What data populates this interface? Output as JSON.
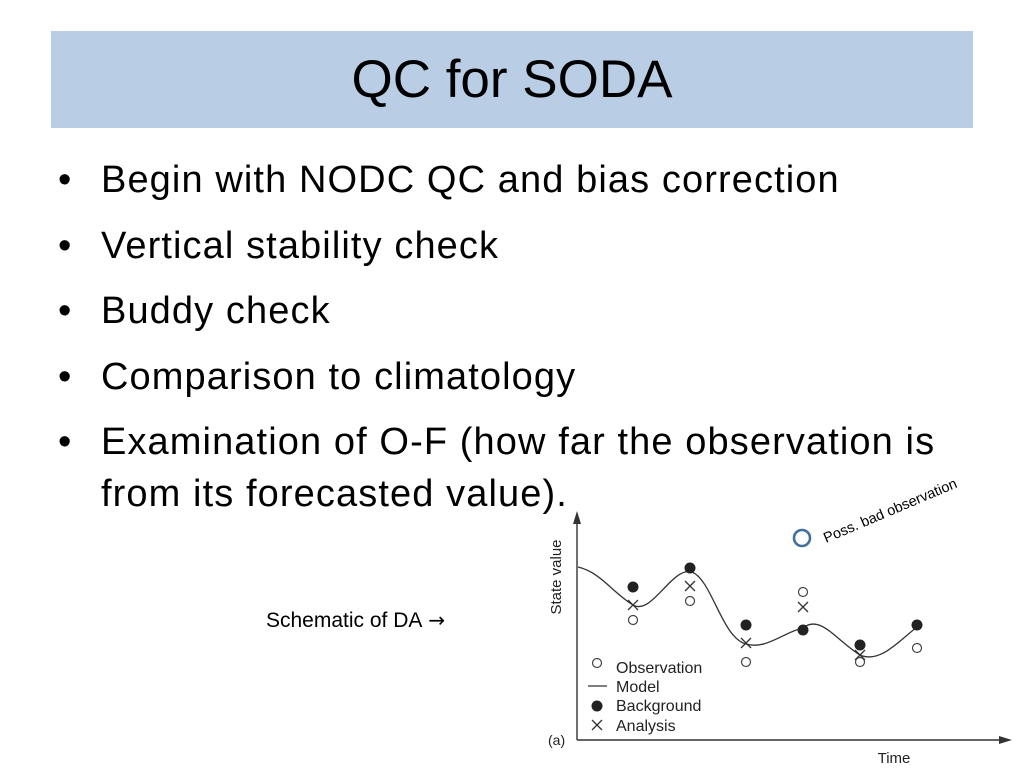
{
  "slide": {
    "title": "QC for SODA",
    "bullet_glyph": "•",
    "bullets": [
      "Begin with NODC QC and bias correction",
      "Vertical stability check",
      "Buddy check",
      "Comparison to climatology",
      "Examination of O-F (how far the observation is from its forecasted value)."
    ]
  },
  "schematic": {
    "caption": "Schematic of DA",
    "caption_arrow": "→",
    "annotation": "Poss. bad observation",
    "y_axis_label": "State value",
    "x_axis_label": "Time",
    "panel_label": "(a)",
    "legend": [
      {
        "label": "Observation",
        "marker": "open-circle-icon"
      },
      {
        "label": "Model",
        "marker": "line-icon"
      },
      {
        "label": "Background",
        "marker": "filled-circle-icon"
      },
      {
        "label": "Analysis",
        "marker": "cross-icon"
      }
    ]
  },
  "colors": {
    "title_banner": "#B9CDE5",
    "annotation_marker": "#41719C",
    "text": "#000000"
  }
}
